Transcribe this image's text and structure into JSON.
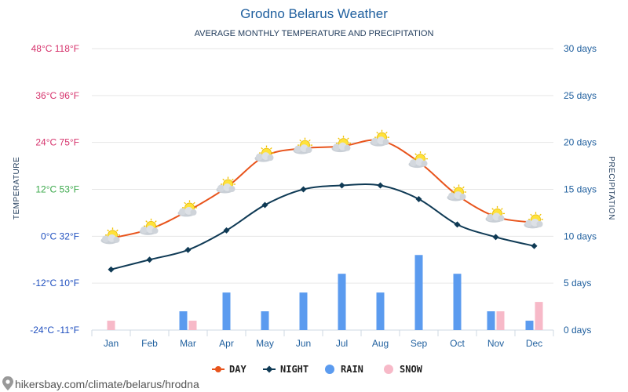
{
  "header": {
    "title": "Grodno Belarus Weather",
    "subtitle": "AVERAGE MONTHLY TEMPERATURE AND PRECIPITATION"
  },
  "axes": {
    "left_title": "TEMPERATURE",
    "right_title": "PRECIPITATION",
    "left_ticks": [
      {
        "label": "48°C 118°F",
        "value": 48,
        "color": "#d6336c"
      },
      {
        "label": "36°C 96°F",
        "value": 36,
        "color": "#d6336c"
      },
      {
        "label": "24°C 75°F",
        "value": 24,
        "color": "#d6336c"
      },
      {
        "label": "12°C 53°F",
        "value": 12,
        "color": "#3aa84a"
      },
      {
        "label": "0°C 32°F",
        "value": 0,
        "color": "#1f4fbf"
      },
      {
        "label": "-12°C 10°F",
        "value": -12,
        "color": "#1f4fbf"
      },
      {
        "label": "-24°C -11°F",
        "value": -24,
        "color": "#1f4fbf"
      }
    ],
    "right_ticks": [
      {
        "label": "30 days",
        "value": 30
      },
      {
        "label": "25 days",
        "value": 25
      },
      {
        "label": "20 days",
        "value": 20
      },
      {
        "label": "15 days",
        "value": 15
      },
      {
        "label": "10 days",
        "value": 10
      },
      {
        "label": "5 days",
        "value": 5
      },
      {
        "label": "0 days",
        "value": 0
      }
    ]
  },
  "legend": [
    {
      "label": "DAY",
      "color": "#e8541c",
      "marker": "circle-line"
    },
    {
      "label": "NIGHT",
      "color": "#0f3a55",
      "marker": "diamond-line"
    },
    {
      "label": "RAIN",
      "color": "#5b9bef",
      "marker": "dot"
    },
    {
      "label": "SNOW",
      "color": "#f7b9c8",
      "marker": "dot"
    }
  ],
  "source": "hikersbay.com/climate/belarus/hrodna",
  "icons": {
    "weather": "partly-cloudy-icon",
    "source": "location-pin-icon"
  },
  "chart_data": {
    "type": "line",
    "categories": [
      "Jan",
      "Feb",
      "Mar",
      "Apr",
      "May",
      "Jun",
      "Jul",
      "Aug",
      "Sep",
      "Oct",
      "Nov",
      "Dec"
    ],
    "series": [
      {
        "name": "DAY",
        "type": "line",
        "axis": "temperature",
        "color": "#e8541c",
        "values": [
          -0.5,
          1.8,
          6.5,
          12.5,
          20.5,
          22.5,
          23,
          24.5,
          19,
          10.5,
          5,
          3.5
        ]
      },
      {
        "name": "NIGHT",
        "type": "line",
        "axis": "temperature",
        "color": "#0f3a55",
        "values": [
          -8.5,
          -6,
          -3.5,
          1.5,
          8,
          12,
          13,
          13,
          9.5,
          3,
          -0.2,
          -2.5
        ]
      },
      {
        "name": "RAIN",
        "type": "bar",
        "axis": "precipitation",
        "color": "#5b9bef",
        "values": [
          0,
          0,
          2,
          4,
          2,
          4,
          6,
          4,
          8,
          6,
          2,
          1
        ]
      },
      {
        "name": "SNOW",
        "type": "bar",
        "axis": "precipitation",
        "color": "#f7b9c8",
        "values": [
          1,
          0,
          1,
          0,
          0,
          0,
          0,
          0,
          0,
          0,
          2,
          3
        ]
      }
    ],
    "ylim_temperature": [
      -24,
      48
    ],
    "ylim_precipitation": [
      0,
      30
    ],
    "grid": true,
    "legend_position": "bottom"
  }
}
